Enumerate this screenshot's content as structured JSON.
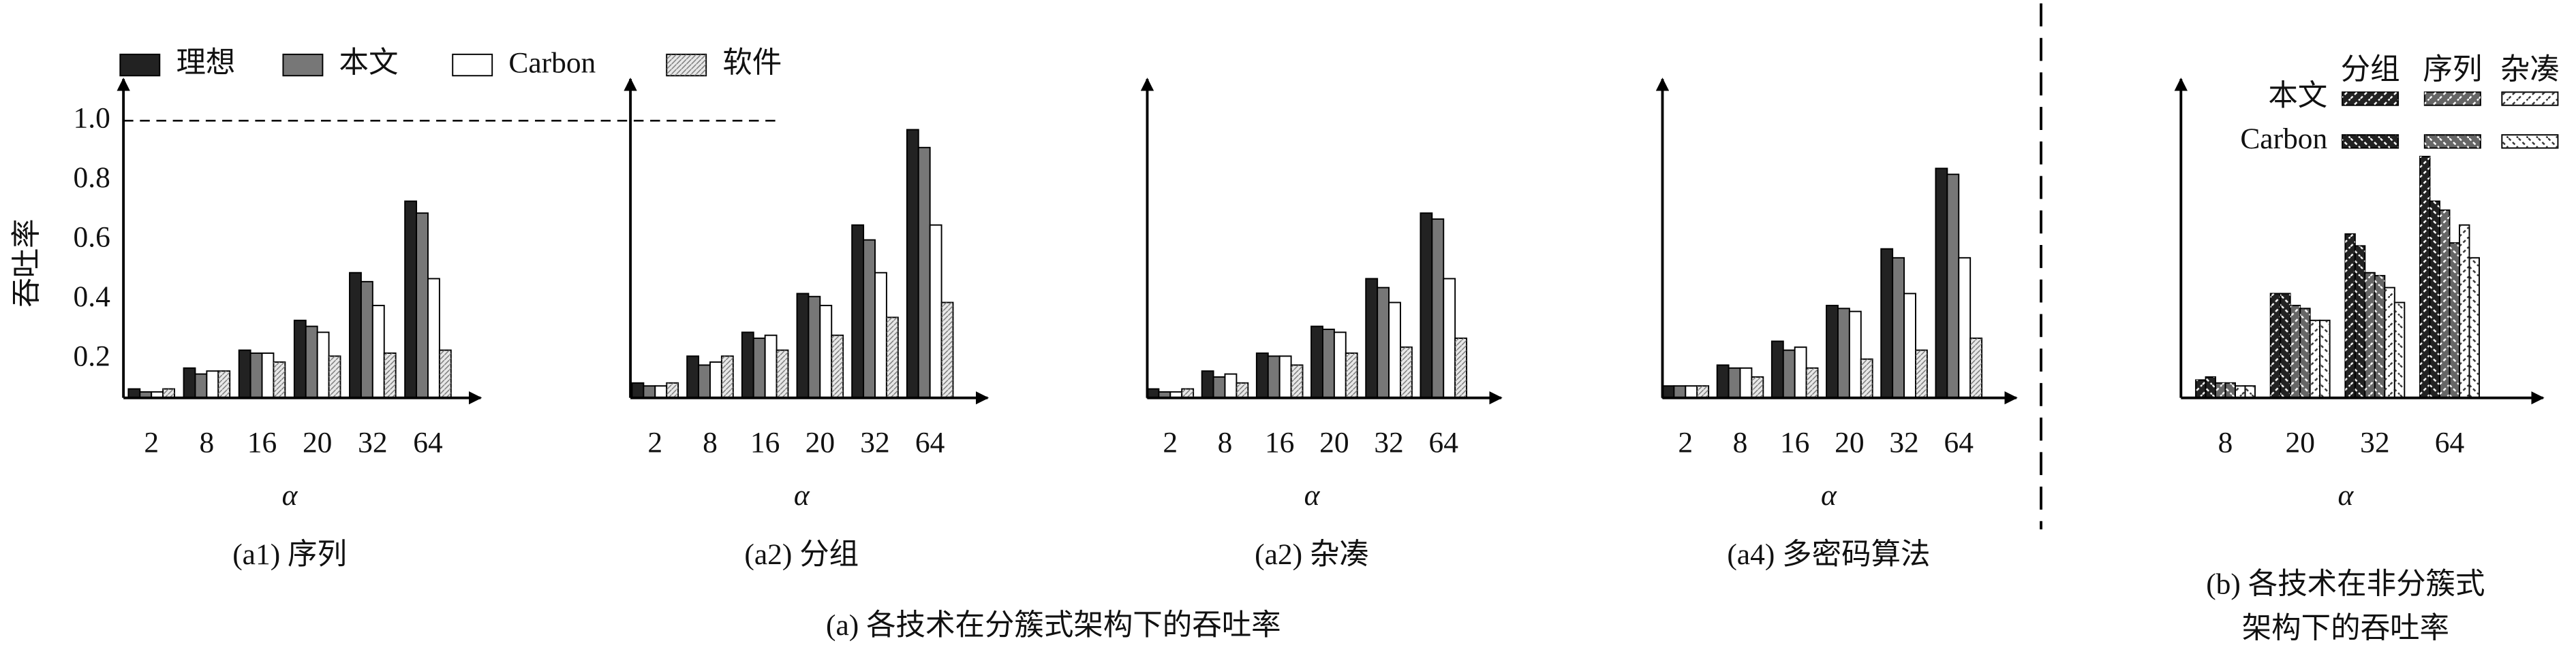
{
  "chart_data": [
    {
      "type": "bar",
      "title": "(a1) 序列",
      "categories": [
        "2",
        "8",
        "16",
        "20",
        "32",
        "64"
      ],
      "xlabel": "α",
      "ylabel": "吞吐率",
      "ylim": [
        0.07,
        1.14
      ],
      "yticks": [
        0.2,
        0.4,
        0.6,
        0.8,
        {
          "value": 1,
          "label": "1.0"
        }
      ],
      "reference_line": 1,
      "legend": true,
      "series": [
        {
          "name": "理想",
          "color": "#222222",
          "values": [
            0.1,
            0.17,
            0.23,
            0.33,
            0.49,
            0.73
          ]
        },
        {
          "name": "本文",
          "color": "#777777",
          "values": [
            0.09,
            0.15,
            0.22,
            0.31,
            0.46,
            0.69
          ]
        },
        {
          "name": "Carbon",
          "color": "#ffffff",
          "values": [
            0.09,
            0.16,
            0.22,
            0.29,
            0.38,
            0.47
          ]
        },
        {
          "name": "软件",
          "color": "#e8e8e8",
          "hatch": "dots",
          "values": [
            0.1,
            0.16,
            0.19,
            0.21,
            0.22,
            0.23
          ]
        }
      ]
    },
    {
      "type": "bar",
      "title": "(a2) 分组",
      "categories": [
        "2",
        "8",
        "16",
        "20",
        "32",
        "64"
      ],
      "xlabel": "α",
      "ylim": [
        0.07,
        1.14
      ],
      "series": [
        {
          "name": "理想",
          "color": "#222222",
          "values": [
            0.12,
            0.21,
            0.29,
            0.42,
            0.65,
            0.97
          ]
        },
        {
          "name": "本文",
          "color": "#777777",
          "values": [
            0.11,
            0.18,
            0.27,
            0.41,
            0.6,
            0.91
          ]
        },
        {
          "name": "Carbon",
          "color": "#ffffff",
          "values": [
            0.11,
            0.19,
            0.28,
            0.38,
            0.49,
            0.65
          ]
        },
        {
          "name": "软件",
          "color": "#e8e8e8",
          "hatch": "dots",
          "values": [
            0.12,
            0.21,
            0.23,
            0.28,
            0.34,
            0.39
          ]
        }
      ]
    },
    {
      "type": "bar",
      "title": "(a2) 杂凑",
      "categories": [
        "2",
        "8",
        "16",
        "20",
        "32",
        "64"
      ],
      "xlabel": "α",
      "ylim": [
        0.07,
        1.14
      ],
      "series": [
        {
          "name": "理想",
          "color": "#222222",
          "values": [
            0.1,
            0.16,
            0.22,
            0.31,
            0.47,
            0.69
          ]
        },
        {
          "name": "本文",
          "color": "#777777",
          "values": [
            0.09,
            0.14,
            0.21,
            0.3,
            0.44,
            0.67
          ]
        },
        {
          "name": "Carbon",
          "color": "#ffffff",
          "values": [
            0.09,
            0.15,
            0.21,
            0.29,
            0.39,
            0.47
          ]
        },
        {
          "name": "软件",
          "color": "#e8e8e8",
          "hatch": "dots",
          "values": [
            0.1,
            0.12,
            0.18,
            0.22,
            0.24,
            0.27
          ]
        }
      ]
    },
    {
      "type": "bar",
      "title": "(a4) 多密码算法",
      "categories": [
        "2",
        "8",
        "16",
        "20",
        "32",
        "64"
      ],
      "xlabel": "α",
      "ylim": [
        0.07,
        1.14
      ],
      "series": [
        {
          "name": "理想",
          "color": "#222222",
          "values": [
            0.11,
            0.18,
            0.26,
            0.38,
            0.57,
            0.84
          ]
        },
        {
          "name": "本文",
          "color": "#777777",
          "values": [
            0.11,
            0.17,
            0.23,
            0.37,
            0.54,
            0.82
          ]
        },
        {
          "name": "Carbon",
          "color": "#ffffff",
          "values": [
            0.11,
            0.17,
            0.24,
            0.36,
            0.42,
            0.54
          ]
        },
        {
          "name": "软件",
          "color": "#e8e8e8",
          "hatch": "dots",
          "values": [
            0.11,
            0.14,
            0.17,
            0.2,
            0.23,
            0.27
          ]
        }
      ]
    },
    {
      "type": "grouped_hatched_bar",
      "title": [
        "(b) 各技术在非分簇式",
        "架构下的吞吐率"
      ],
      "categories": [
        "8",
        "20",
        "32",
        "64"
      ],
      "xlabel": "α",
      "ylim": [
        0.07,
        1.14
      ],
      "groups": [
        {
          "name": "分组",
          "color": "#222222",
          "series": [
            {
              "name": "本文",
              "hatch": "/",
              "values": [
                0.13,
                0.42,
                0.62,
                0.88
              ]
            },
            {
              "name": "Carbon",
              "hatch": "\\",
              "values": [
                0.14,
                0.42,
                0.58,
                0.73
              ]
            }
          ]
        },
        {
          "name": "序列",
          "color": "#666666",
          "series": [
            {
              "name": "本文",
              "hatch": "/",
              "values": [
                0.12,
                0.38,
                0.49,
                0.7
              ]
            },
            {
              "name": "Carbon",
              "hatch": "\\",
              "values": [
                0.12,
                0.37,
                0.48,
                0.59
              ]
            }
          ]
        },
        {
          "name": "杂凑",
          "color": "#ffffff",
          "series": [
            {
              "name": "本文",
              "hatch": "/",
              "values": [
                0.11,
                0.33,
                0.44,
                0.65
              ]
            },
            {
              "name": "Carbon",
              "hatch": "\\",
              "values": [
                0.11,
                0.33,
                0.39,
                0.54
              ]
            }
          ]
        }
      ]
    }
  ],
  "caption": "(a) 各技术在分簇式架构下的吞吐率"
}
